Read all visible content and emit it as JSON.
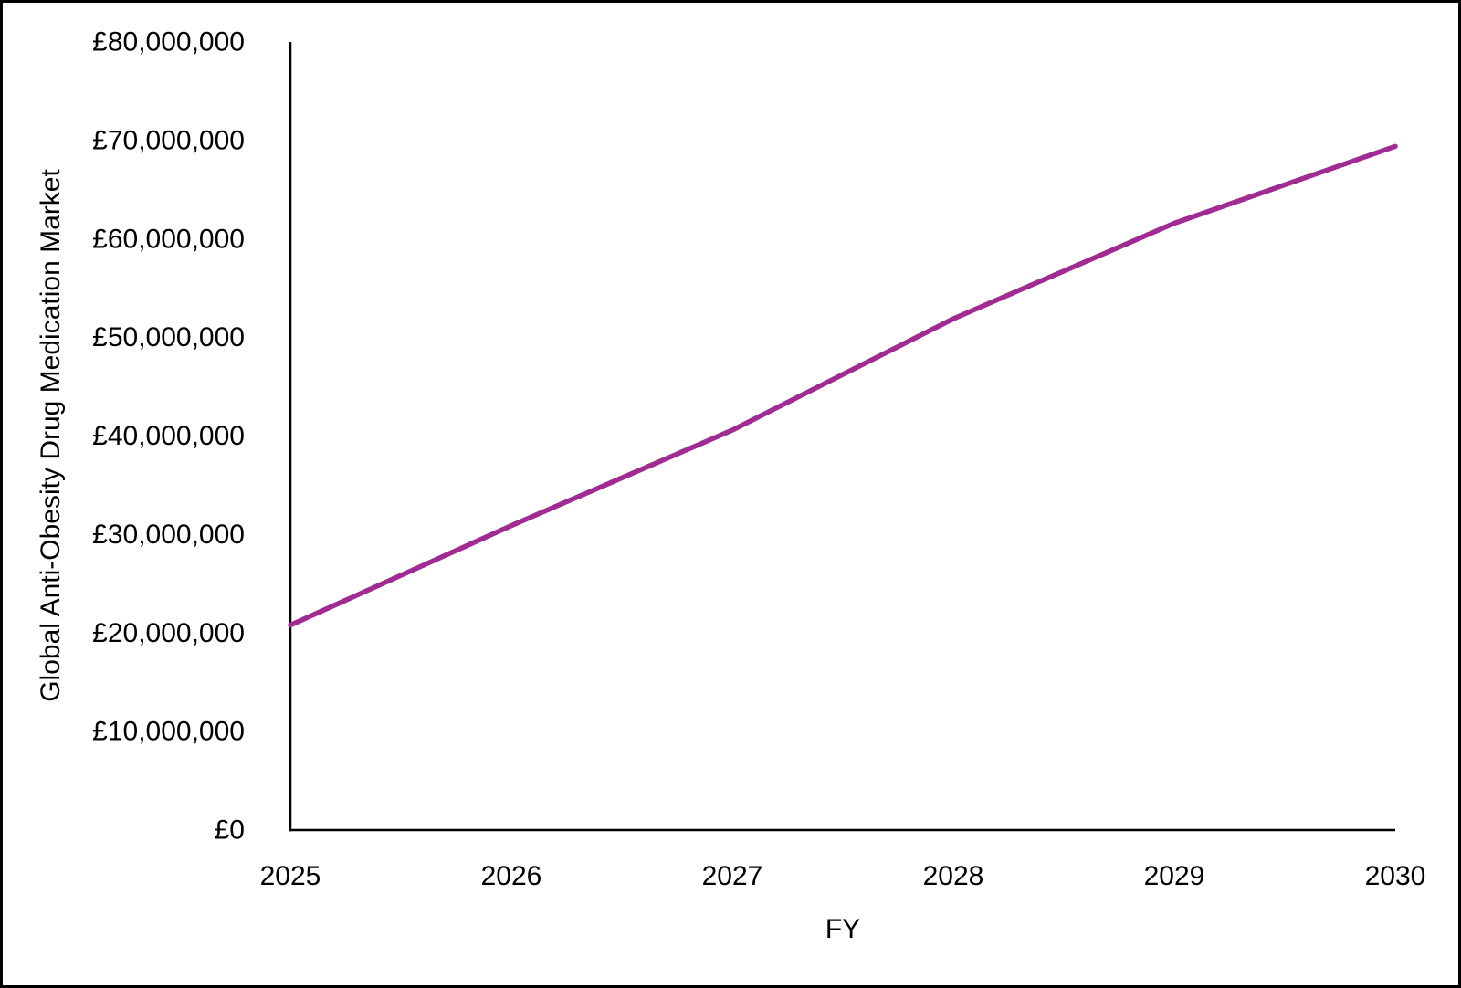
{
  "chart_data": {
    "type": "line",
    "title": "",
    "xlabel": "FY",
    "ylabel": "Global Anti-Obesity Drug Medication Market",
    "categories": [
      "2025",
      "2026",
      "2027",
      "2028",
      "2029",
      "2030"
    ],
    "series": [
      {
        "name": "Global Anti-Obesity Drug Medication Market",
        "values": [
          20800000,
          30900000,
          40600000,
          51900000,
          61600000,
          69400000
        ]
      }
    ],
    "ylim": [
      0,
      80000000
    ],
    "ytick_interval": 10000000,
    "ytick_labels": [
      "£0",
      "£10,000,000",
      "£20,000,000",
      "£30,000,000",
      "£40,000,000",
      "£50,000,000",
      "£60,000,000",
      "£70,000,000",
      "£80,000,000"
    ],
    "xtick_labels": [
      "2025",
      "2026",
      "2027",
      "2028",
      "2029",
      "2030"
    ],
    "grid": false,
    "legend_position": "none",
    "colors": {
      "line": "#A02B93",
      "axis": "#000000",
      "text": "#000000",
      "background": "#FFFFFF",
      "border": "#000000"
    }
  }
}
